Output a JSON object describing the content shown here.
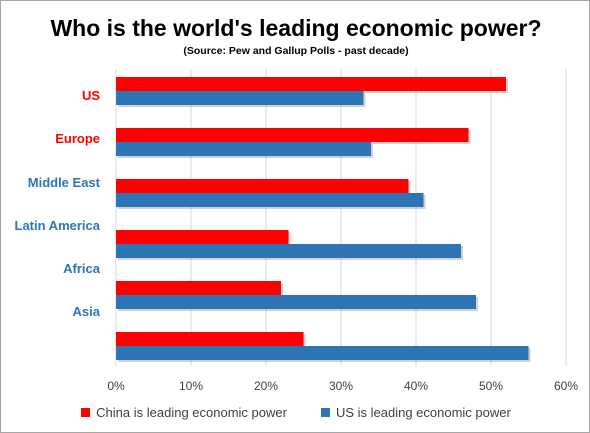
{
  "chart_data": {
    "type": "bar",
    "orientation": "horizontal",
    "title": "Who is the world's leading economic power?",
    "subtitle": "(Source: Pew and Gallup Polls - past decade)",
    "categories": [
      "US",
      "Europe",
      "Middle East",
      "Latin America",
      "Africa",
      "Asia"
    ],
    "category_colors": [
      "#ff0000",
      "#ff0000",
      "#2e75b6",
      "#2e75b6",
      "#2e75b6",
      "#2e75b6"
    ],
    "series": [
      {
        "name": "China is leading economic power",
        "color": "#ff0000",
        "values": [
          52,
          47,
          39,
          23,
          22,
          25
        ]
      },
      {
        "name": "US is leading economic power",
        "color": "#2e75b6",
        "values": [
          33,
          34,
          41,
          46,
          48,
          55
        ]
      }
    ],
    "xlim": [
      0,
      60
    ],
    "xticks": [
      "0%",
      "10%",
      "20%",
      "30%",
      "40%",
      "50%",
      "60%"
    ],
    "grid": true,
    "legend_position": "bottom"
  }
}
